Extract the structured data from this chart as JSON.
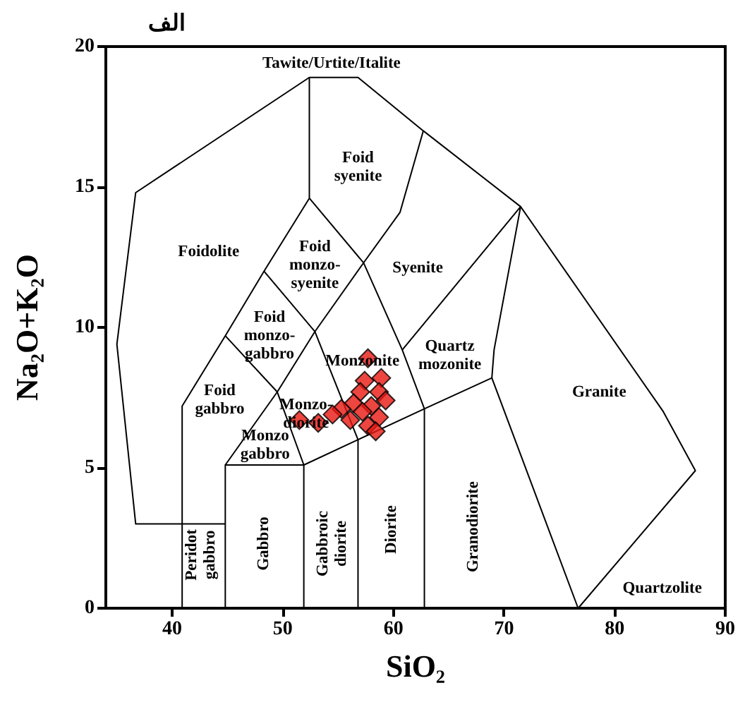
{
  "chart_data": {
    "type": "scatter",
    "title": "الف",
    "xlabel": "SiO₂",
    "ylabel": "Na₂O+K₂O",
    "xlim": [
      34,
      90
    ],
    "xticks": [
      40,
      50,
      60,
      70,
      80,
      90
    ],
    "ylim": [
      0,
      20
    ],
    "yticks": [
      0,
      5,
      10,
      15,
      20
    ],
    "grid": false,
    "marker": "diamond",
    "series": [
      {
        "color": "#e8170f",
        "x": [
          57.7,
          58.9,
          57.4,
          58.7,
          57.0,
          59.3,
          56.4,
          58.0,
          55.3,
          57.2,
          58.7,
          54.5,
          53.2,
          51.5,
          56.1,
          57.7,
          58.4
        ],
        "values": [
          8.9,
          8.2,
          8.1,
          7.7,
          7.7,
          7.4,
          7.3,
          7.2,
          7.1,
          7.0,
          6.8,
          6.9,
          6.6,
          6.7,
          6.7,
          6.5,
          6.3
        ]
      },
      {
        "type": "line",
        "marker": "none",
        "color": "#000000",
        "x": [
          44.8,
          36.7,
          35.0,
          36.7,
          52.4,
          56.8,
          62.7,
          71.5,
          84.4,
          87.3,
          76.7
        ],
        "values": [
          3.0,
          3.0,
          9.4,
          14.8,
          18.9,
          18.9,
          17.0,
          14.3,
          7.0,
          4.9,
          0
        ]
      },
      {
        "type": "line",
        "marker": "none",
        "color": "#000000",
        "x": [
          40.9,
          40.9,
          44.8,
          48.3,
          52.4,
          52.4
        ],
        "values": [
          0,
          7.2,
          9.7,
          12.0,
          14.6,
          18.9
        ]
      },
      {
        "type": "line",
        "marker": "none",
        "color": "#000000",
        "x": [
          44.8,
          44.8,
          51.9,
          51.9
        ],
        "values": [
          0,
          5.1,
          5.1,
          0
        ]
      },
      {
        "type": "line",
        "marker": "none",
        "color": "#000000",
        "x": [
          44.8,
          49.5,
          52.9,
          57.3,
          60.6,
          62.7
        ],
        "values": [
          5.1,
          7.7,
          9.85,
          12.3,
          14.1,
          17.0
        ]
      },
      {
        "type": "line",
        "marker": "none",
        "color": "#000000",
        "x": [
          52.4,
          57.3,
          60.8,
          62.8,
          62.8
        ],
        "values": [
          14.6,
          12.3,
          9.2,
          7.1,
          0
        ]
      },
      {
        "type": "line",
        "marker": "none",
        "color": "#000000",
        "x": [
          60.8,
          71.5,
          69.1,
          68.9
        ],
        "values": [
          9.2,
          14.3,
          9.2,
          8.2
        ]
      },
      {
        "type": "line",
        "marker": "none",
        "color": "#000000",
        "x": [
          51.9,
          56.8,
          62.8,
          68.9,
          76.7
        ],
        "values": [
          5.1,
          6.0,
          7.1,
          8.2,
          0
        ]
      },
      {
        "type": "line",
        "marker": "none",
        "color": "#000000",
        "x": [
          44.8,
          49.5,
          51.9
        ],
        "values": [
          9.7,
          7.7,
          5.1
        ]
      },
      {
        "type": "line",
        "marker": "none",
        "color": "#000000",
        "x": [
          48.3,
          52.9,
          56.8,
          56.8
        ],
        "values": [
          12.0,
          9.85,
          6.0,
          0
        ]
      }
    ],
    "annotations": [
      "Tawite/Urtite/Italite",
      "Foid\nsyenite",
      "Foidolite",
      "Foid\nmonzo-\nsyenite",
      "Syenite",
      "Foid\nmonzo-\ngabbro",
      "Monzonite",
      "Quartz\nmozonite",
      "Foid\ngabbro",
      "Monzo-\ndiorite",
      "Monzo\ngabbro",
      "Granite",
      "Peridot\ngabbro",
      "Gabbro",
      "Gabbroic\ndiorite",
      "Diorite",
      "Granodiorite",
      "Quartzolite"
    ]
  }
}
